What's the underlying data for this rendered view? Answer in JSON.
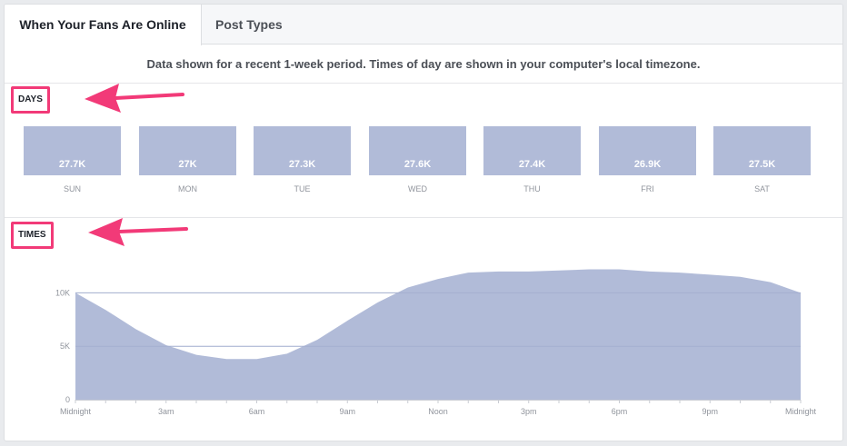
{
  "tabs": [
    {
      "label": "When Your Fans Are Online"
    },
    {
      "label": "Post Types"
    }
  ],
  "notice": "Data shown for a recent 1-week period. Times of day are shown in your computer's local timezone.",
  "sections": {
    "days_label": "DAYS",
    "times_label": "TIMES"
  },
  "colors": {
    "accent_pink": "#f23a78",
    "bar_fill": "#b1bbd8",
    "area_fill": "#b1bbd8"
  },
  "chart_data": [
    {
      "type": "bar",
      "title": "DAYS",
      "categories": [
        "SUN",
        "MON",
        "TUE",
        "WED",
        "THU",
        "FRI",
        "SAT"
      ],
      "values": [
        27700,
        27000,
        27300,
        27600,
        27400,
        26900,
        27500
      ],
      "value_labels": [
        "27.7K",
        "27K",
        "27.3K",
        "27.6K",
        "27.4K",
        "26.9K",
        "27.5K"
      ]
    },
    {
      "type": "area",
      "title": "TIMES",
      "x": [
        0,
        1,
        2,
        3,
        4,
        5,
        6,
        7,
        8,
        9,
        10,
        11,
        12,
        13,
        14,
        15,
        16,
        17,
        18,
        19,
        20,
        21,
        22,
        23,
        24
      ],
      "x_tick_labels": [
        "Midnight",
        "3am",
        "6am",
        "9am",
        "Noon",
        "3pm",
        "6pm",
        "9pm",
        "Midnight"
      ],
      "x_tick_values": [
        0,
        3,
        6,
        9,
        12,
        15,
        18,
        21,
        24
      ],
      "series": [
        {
          "values": [
            10000,
            8400,
            6600,
            5100,
            4200,
            3800,
            3800,
            4300,
            5600,
            7400,
            9100,
            10500,
            11300,
            11900,
            12000,
            12000,
            12100,
            12200,
            12200,
            12000,
            11900,
            11700,
            11500,
            11000,
            10000
          ]
        }
      ],
      "y_ticks": [
        {
          "value": 0,
          "label": "0"
        },
        {
          "value": 5000,
          "label": "5K"
        },
        {
          "value": 10000,
          "label": "10K"
        }
      ],
      "ylim": [
        0,
        12500
      ],
      "xlim": [
        0,
        24
      ],
      "grid": true
    }
  ]
}
